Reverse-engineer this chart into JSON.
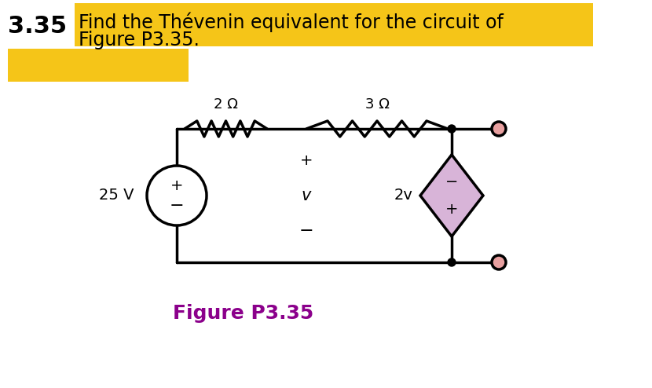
{
  "title_number": "3.35",
  "title_text": "Find the Thévenin equivalent for the circuit of\nFigure P3.35.",
  "highlight_color": "#F5C518",
  "figure_label": "Figure P3.35",
  "figure_label_color": "#8B008B",
  "bg_color": "#FFFFFF",
  "circuit": {
    "voltage_source_value": "25 V",
    "resistor1_value": "2 Ω",
    "resistor2_value": "3 Ω",
    "dep_source_value": "2v",
    "voltage_label": "v"
  }
}
